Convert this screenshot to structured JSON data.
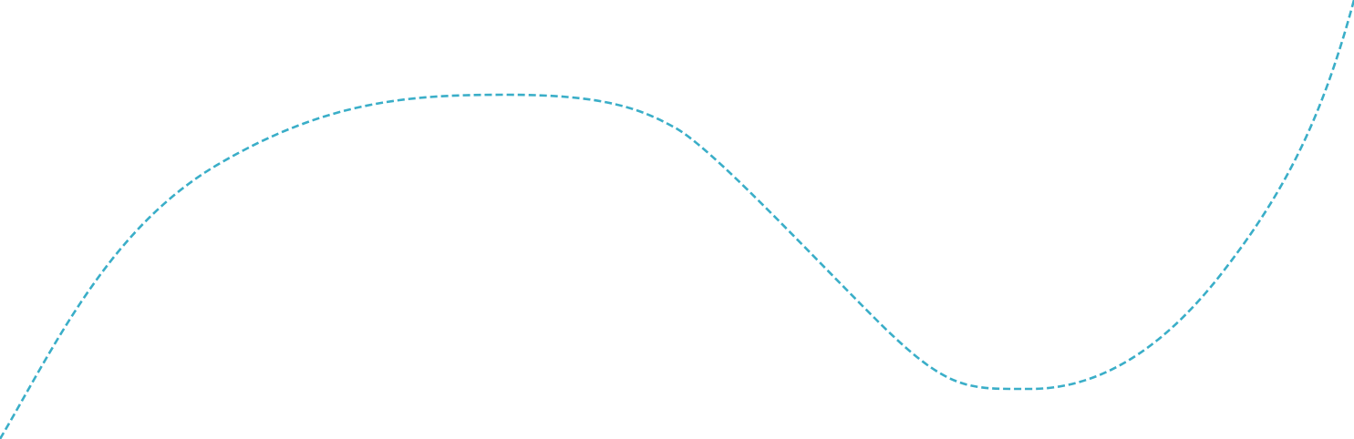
{
  "decoration": {
    "type": "dashed-curve",
    "stroke_color": "#3aaec8",
    "background_color": "#ffffff"
  }
}
